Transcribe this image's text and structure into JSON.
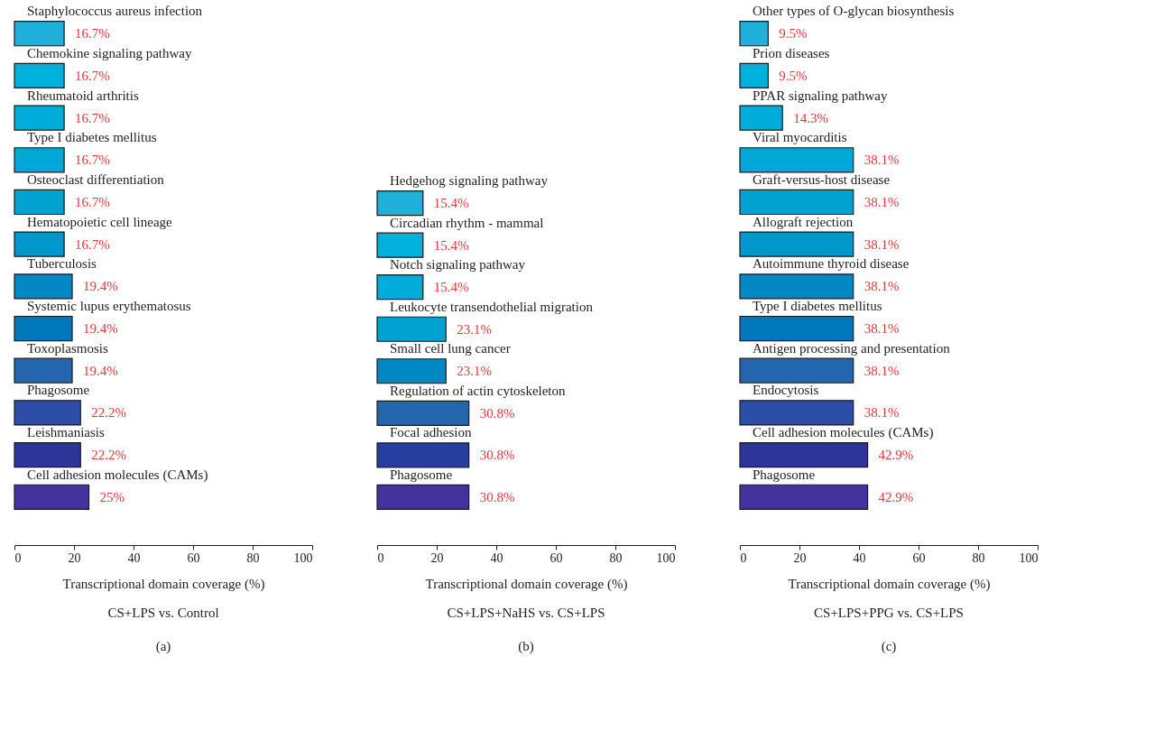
{
  "chart_data": [
    {
      "type": "bar",
      "orientation": "horizontal",
      "title": "CS+LPS vs. Control",
      "subtitle": "(a)",
      "xlabel": "Transcriptional domain coverage (%)",
      "categories": [
        "Staphylococcus aureus infection",
        "Chemokine signaling pathway",
        "Rheumatoid arthritis",
        "Type I diabetes mellitus",
        "Osteoclast differentiation",
        "Hematopoietic cell lineage",
        "Tuberculosis",
        "Systemic lupus erythematosus",
        "Toxoplasmosis",
        "Phagosome",
        "Leishmaniasis",
        "Cell adhesion molecules (CAMs)"
      ],
      "values": [
        16.7,
        16.7,
        16.7,
        16.7,
        16.7,
        16.7,
        19.4,
        19.4,
        19.4,
        22.2,
        22.2,
        25
      ],
      "value_labels": [
        "16.7%",
        "16.7%",
        "16.7%",
        "16.7%",
        "16.7%",
        "16.7%",
        "19.4%",
        "19.4%",
        "19.4%",
        "22.2%",
        "22.2%",
        "25%"
      ],
      "colors": [
        "#1fb0dc",
        "#00b0dd",
        "#00acd9",
        "#00a8d6",
        "#00a2d2",
        "#0098cc",
        "#0088c4",
        "#0078bb",
        "#2466ae",
        "#2c4ea8",
        "#2e3598",
        "#43339e"
      ],
      "xlim": [
        0,
        100
      ],
      "xticks": [
        0,
        20,
        40,
        60,
        80,
        100
      ],
      "grid": false
    },
    {
      "type": "bar",
      "orientation": "horizontal",
      "title": "CS+LPS+NaHS vs. CS+LPS",
      "subtitle": "(b)",
      "xlabel": "Transcriptional domain coverage (%)",
      "categories": [
        "Hedgehog signaling pathway",
        "Circadian rhythm - mammal",
        "Notch signaling pathway",
        "Leukocyte transendothelial migration",
        "Small cell lung cancer",
        "Regulation of actin cytoskeleton",
        "Focal adhesion",
        "Phagosome"
      ],
      "values": [
        15.4,
        15.4,
        15.4,
        23.1,
        23.1,
        30.8,
        30.8,
        30.8
      ],
      "value_labels": [
        "15.4%",
        "15.4%",
        "15.4%",
        "23.1%",
        "23.1%",
        "30.8%",
        "30.8%",
        "30.8%"
      ],
      "colors": [
        "#1fb0dc",
        "#00b0dd",
        "#00acd9",
        "#00a2d2",
        "#0088c4",
        "#2466ae",
        "#263f9e",
        "#43339e"
      ],
      "xlim": [
        0,
        100
      ],
      "xticks": [
        0,
        20,
        40,
        60,
        80,
        100
      ],
      "grid": false
    },
    {
      "type": "bar",
      "orientation": "horizontal",
      "title": "CS+LPS+PPG vs. CS+LPS",
      "subtitle": "(c)",
      "xlabel": "Transcriptional domain coverage (%)",
      "categories": [
        "Other types of O-glycan biosynthesis",
        "Prion diseases",
        "PPAR signaling pathway",
        "Viral myocarditis",
        "Graft-versus-host disease",
        "Allograft rejection",
        "Autoimmune thyroid disease",
        "Type I diabetes mellitus",
        "Antigen processing and presentation",
        "Endocytosis",
        "Cell adhesion molecules (CAMs)",
        "Phagosome"
      ],
      "values": [
        9.5,
        9.5,
        14.3,
        38.1,
        38.1,
        38.1,
        38.1,
        38.1,
        38.1,
        38.1,
        42.9,
        42.9
      ],
      "value_labels": [
        "9.5%",
        "9.5%",
        "14.3%",
        "38.1%",
        "38.1%",
        "38.1%",
        "38.1%",
        "38.1%",
        "38.1%",
        "38.1%",
        "42.9%",
        "42.9%"
      ],
      "colors": [
        "#1fb0dc",
        "#00b0dd",
        "#00acd9",
        "#00a8d6",
        "#00a2d2",
        "#0098cc",
        "#0088c4",
        "#0078bb",
        "#2466ae",
        "#2c4ea8",
        "#2e3598",
        "#43339e"
      ],
      "xlim": [
        0,
        100
      ],
      "xticks": [
        0,
        20,
        40,
        60,
        80,
        100
      ],
      "grid": false
    }
  ]
}
